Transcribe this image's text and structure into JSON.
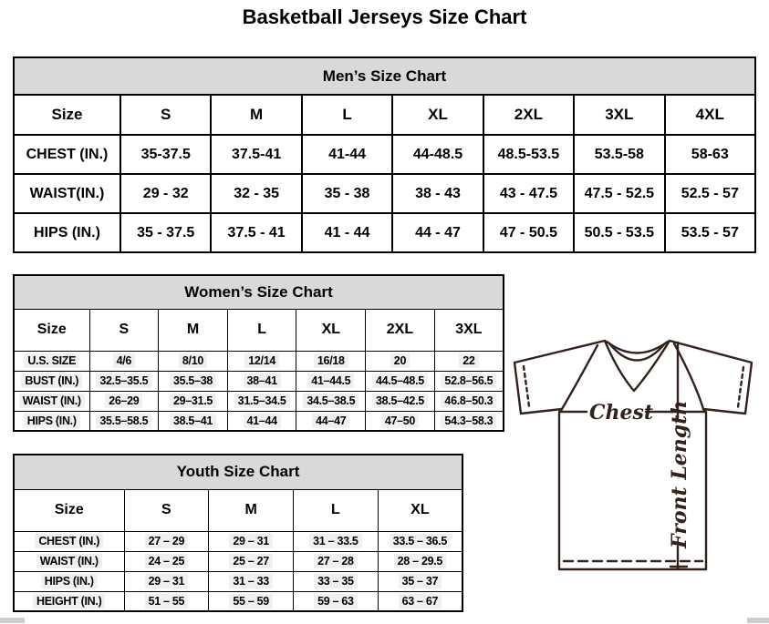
{
  "page": {
    "title": "Basketball Jerseys Size Chart"
  },
  "mens": {
    "title": "Men’s Size Chart",
    "columns": [
      "Size",
      "S",
      "M",
      "L",
      "XL",
      "2XL",
      "3XL",
      "4XL"
    ],
    "rows": [
      {
        "label": "CHEST (IN.)",
        "values": [
          "35-37.5",
          "37.5-41",
          "41-44",
          "44-48.5",
          "48.5-53.5",
          "53.5-58",
          "58-63"
        ]
      },
      {
        "label": "WAIST(IN.)",
        "values": [
          "29 - 32",
          "32 - 35",
          "35 - 38",
          "38 - 43",
          "43 - 47.5",
          "47.5 - 52.5",
          "52.5 - 57"
        ]
      },
      {
        "label": "HIPS (IN.)",
        "values": [
          "35 - 37.5",
          "37.5 - 41",
          "41 - 44",
          "44 - 47",
          "47 - 50.5",
          "50.5 - 53.5",
          "53.5 - 57"
        ]
      }
    ]
  },
  "womens": {
    "title": "Women’s Size Chart",
    "columns": [
      "Size",
      "S",
      "M",
      "L",
      "XL",
      "2XL",
      "3XL"
    ],
    "rows": [
      {
        "label": "U.S. SIZE",
        "values": [
          "4/6",
          "8/10",
          "12/14",
          "16/18",
          "20",
          "22"
        ]
      },
      {
        "label": "BUST (IN.)",
        "values": [
          "32.5–35.5",
          "35.5–38",
          "38–41",
          "41–44.5",
          "44.5–48.5",
          "52.8–56.5"
        ]
      },
      {
        "label": "WAIST (IN.)",
        "values": [
          "26–29",
          "29–31.5",
          "31.5–34.5",
          "34.5–38.5",
          "38.5–42.5",
          "46.8–50.3"
        ]
      },
      {
        "label": "HIPS (IN.)",
        "values": [
          "35.5–58.5",
          "38.5–41",
          "41–44",
          "44–47",
          "47–50",
          "54.3–58.3"
        ]
      }
    ]
  },
  "youth": {
    "title": "Youth Size Chart",
    "columns": [
      "Size",
      "S",
      "M",
      "L",
      "XL"
    ],
    "rows": [
      {
        "label": "CHEST (IN.)",
        "values": [
          "27 – 29",
          "29 – 31",
          "31 – 33.5",
          "33.5 – 36.5"
        ]
      },
      {
        "label": "WAIST (IN.)",
        "values": [
          "24 – 25",
          "25 – 27",
          "27 – 28",
          "28 – 29.5"
        ]
      },
      {
        "label": "HIPS (IN.)",
        "values": [
          "29 – 31",
          "31 – 33",
          "33 – 35",
          "35 – 37"
        ]
      },
      {
        "label": "HEIGHT (IN.)",
        "values": [
          "51 – 55",
          "55 – 59",
          "59 – 63",
          "63 – 67"
        ]
      }
    ]
  },
  "diagram": {
    "chest_label": "Chest",
    "front_length_label": "Front Length"
  },
  "colors": {
    "header_bg": "#d9d9d9",
    "table_border": "#000000",
    "diagram_stroke": "#33221b",
    "cell_highlight": "#f0f0f0"
  }
}
